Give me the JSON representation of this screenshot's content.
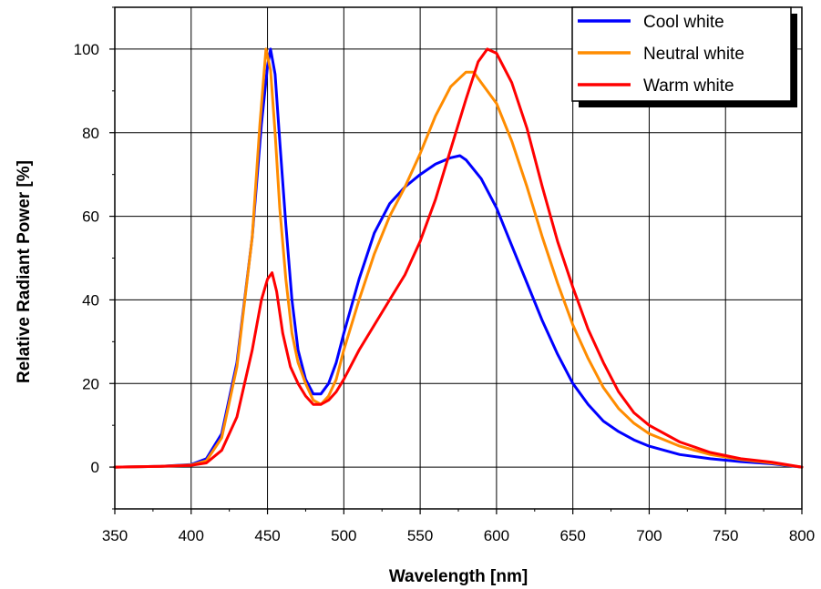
{
  "chart_data": {
    "type": "line",
    "xlabel": "Wavelength [nm]",
    "ylabel": "Relative Radiant Power [%]",
    "xlim": [
      350,
      800
    ],
    "ylim": [
      -10,
      110
    ],
    "x_ticks": [
      350,
      400,
      450,
      500,
      550,
      600,
      650,
      700,
      750,
      800
    ],
    "y_ticks": [
      0,
      20,
      40,
      60,
      80,
      100
    ],
    "grid": true,
    "legend_position": "top-right",
    "series": [
      {
        "name": "Cool white",
        "color": "#0000ff",
        "points": [
          [
            350,
            0
          ],
          [
            380,
            0.2
          ],
          [
            400,
            0.6
          ],
          [
            410,
            2
          ],
          [
            420,
            8
          ],
          [
            430,
            25
          ],
          [
            440,
            55
          ],
          [
            446,
            82
          ],
          [
            450,
            96
          ],
          [
            452,
            100
          ],
          [
            455,
            94
          ],
          [
            458,
            78
          ],
          [
            462,
            58
          ],
          [
            466,
            40
          ],
          [
            470,
            28
          ],
          [
            475,
            21
          ],
          [
            480,
            17.5
          ],
          [
            485,
            17.5
          ],
          [
            490,
            20
          ],
          [
            495,
            25
          ],
          [
            500,
            32
          ],
          [
            510,
            45
          ],
          [
            520,
            56
          ],
          [
            530,
            63
          ],
          [
            540,
            67
          ],
          [
            550,
            70
          ],
          [
            560,
            72.5
          ],
          [
            570,
            74
          ],
          [
            576,
            74.5
          ],
          [
            580,
            73.5
          ],
          [
            590,
            69
          ],
          [
            600,
            62
          ],
          [
            610,
            53
          ],
          [
            620,
            44
          ],
          [
            630,
            35
          ],
          [
            640,
            27
          ],
          [
            650,
            20
          ],
          [
            660,
            15
          ],
          [
            670,
            11
          ],
          [
            680,
            8.5
          ],
          [
            690,
            6.5
          ],
          [
            700,
            5
          ],
          [
            720,
            3
          ],
          [
            740,
            2
          ],
          [
            760,
            1.3
          ],
          [
            780,
            0.8
          ],
          [
            800,
            0
          ]
        ]
      },
      {
        "name": "Neutral white",
        "color": "#ff8c00",
        "points": [
          [
            350,
            0
          ],
          [
            380,
            0.2
          ],
          [
            400,
            0.5
          ],
          [
            410,
            1.5
          ],
          [
            420,
            7
          ],
          [
            430,
            24
          ],
          [
            440,
            55
          ],
          [
            445,
            82
          ],
          [
            449,
            100
          ],
          [
            452,
            95
          ],
          [
            455,
            80
          ],
          [
            458,
            62
          ],
          [
            462,
            45
          ],
          [
            466,
            32
          ],
          [
            470,
            25
          ],
          [
            475,
            20
          ],
          [
            480,
            16
          ],
          [
            485,
            15
          ],
          [
            490,
            17
          ],
          [
            495,
            21
          ],
          [
            500,
            28
          ],
          [
            510,
            40
          ],
          [
            520,
            51
          ],
          [
            530,
            60
          ],
          [
            540,
            67
          ],
          [
            550,
            75
          ],
          [
            560,
            84
          ],
          [
            570,
            91
          ],
          [
            580,
            94.5
          ],
          [
            585,
            94.5
          ],
          [
            590,
            92
          ],
          [
            600,
            87
          ],
          [
            610,
            78
          ],
          [
            620,
            67
          ],
          [
            630,
            55
          ],
          [
            640,
            44
          ],
          [
            650,
            34
          ],
          [
            660,
            26
          ],
          [
            670,
            19
          ],
          [
            680,
            14
          ],
          [
            690,
            10.5
          ],
          [
            700,
            8
          ],
          [
            720,
            5
          ],
          [
            740,
            3
          ],
          [
            760,
            1.8
          ],
          [
            780,
            1
          ],
          [
            800,
            0
          ]
        ]
      },
      {
        "name": "Warm white",
        "color": "#ff0000",
        "points": [
          [
            350,
            0
          ],
          [
            380,
            0.2
          ],
          [
            400,
            0.4
          ],
          [
            410,
            1
          ],
          [
            420,
            4
          ],
          [
            430,
            12
          ],
          [
            440,
            28
          ],
          [
            446,
            40
          ],
          [
            450,
            45
          ],
          [
            453,
            46.5
          ],
          [
            456,
            42
          ],
          [
            460,
            32
          ],
          [
            465,
            24
          ],
          [
            470,
            20
          ],
          [
            475,
            17
          ],
          [
            480,
            15
          ],
          [
            485,
            15
          ],
          [
            490,
            16
          ],
          [
            495,
            18
          ],
          [
            500,
            21
          ],
          [
            510,
            28
          ],
          [
            520,
            34
          ],
          [
            530,
            40
          ],
          [
            540,
            46
          ],
          [
            550,
            54
          ],
          [
            560,
            64
          ],
          [
            570,
            76
          ],
          [
            580,
            88
          ],
          [
            588,
            97
          ],
          [
            594,
            100
          ],
          [
            600,
            99
          ],
          [
            610,
            92
          ],
          [
            620,
            81
          ],
          [
            630,
            67
          ],
          [
            640,
            54
          ],
          [
            650,
            43
          ],
          [
            660,
            33
          ],
          [
            670,
            25
          ],
          [
            680,
            18
          ],
          [
            690,
            13
          ],
          [
            700,
            10
          ],
          [
            720,
            6
          ],
          [
            740,
            3.5
          ],
          [
            760,
            2
          ],
          [
            780,
            1.2
          ],
          [
            800,
            0
          ]
        ]
      }
    ]
  }
}
